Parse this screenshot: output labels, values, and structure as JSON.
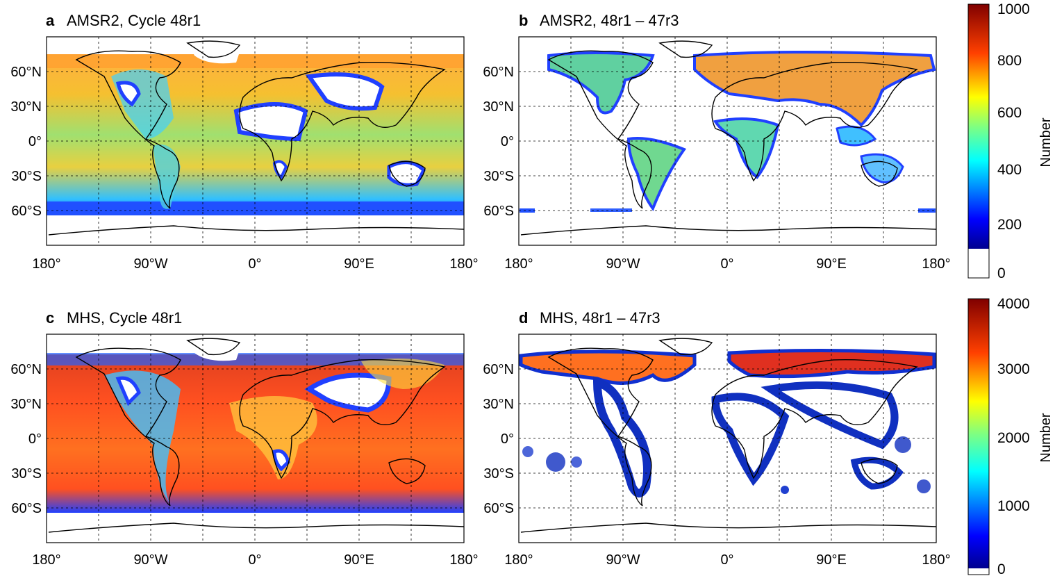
{
  "figure": {
    "panels": [
      {
        "letter": "a",
        "title": "AMSR2, Cycle 48r1",
        "kind": "full",
        "scale": "amsr2"
      },
      {
        "letter": "b",
        "title": "AMSR2, 48r1 – 47r3",
        "kind": "diff",
        "scale": "amsr2"
      },
      {
        "letter": "c",
        "title": "MHS, Cycle 48r1",
        "kind": "full",
        "scale": "mhs"
      },
      {
        "letter": "d",
        "title": "MHS, 48r1 – 47r3",
        "kind": "diff",
        "scale": "mhs"
      }
    ],
    "lon_ticks": [
      "180°",
      "90°W",
      "0°",
      "90°E",
      "180°"
    ],
    "lat_ticks": [
      "60°N",
      "30°N",
      "0°",
      "30°S",
      "60°S"
    ],
    "colorbars": [
      {
        "id": "amsr2",
        "label": "Number",
        "ticks": [
          "1000",
          "800",
          "600",
          "400",
          "200",
          "0"
        ]
      },
      {
        "id": "mhs",
        "label": "Number",
        "ticks": [
          "4000",
          "3000",
          "2000",
          "1000",
          "0"
        ]
      }
    ],
    "colors": {
      "colormap": [
        "#00008f",
        "#0000ff",
        "#0080ff",
        "#00ffff",
        "#80ff80",
        "#ffff00",
        "#ff8000",
        "#ff0000",
        "#800000"
      ],
      "coast": "#000000",
      "grid": "#000000"
    }
  }
}
